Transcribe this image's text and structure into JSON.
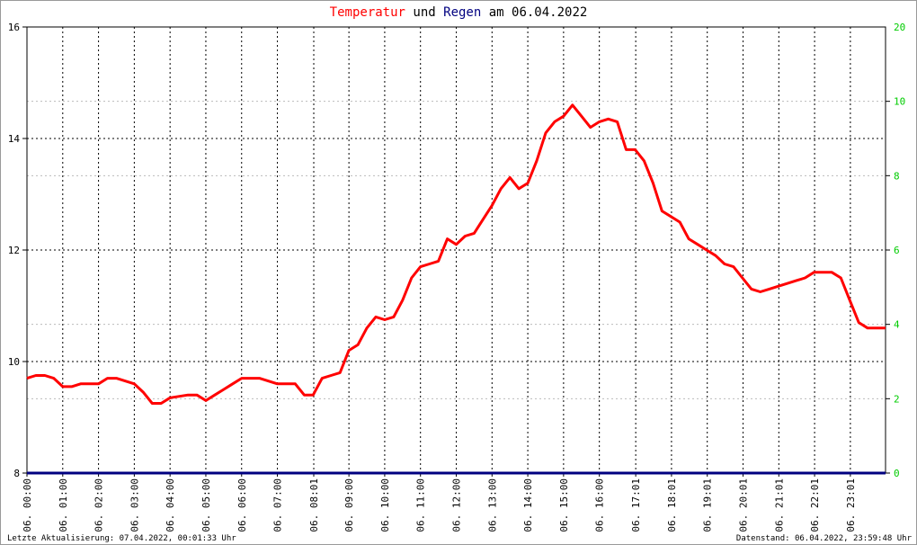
{
  "chart_data": {
    "type": "line",
    "title_join": "und",
    "title_suffix": "am 06.04.2022",
    "x": [
      0,
      0.25,
      0.5,
      0.75,
      1,
      1.25,
      1.5,
      2,
      2.25,
      2.5,
      3,
      3.25,
      3.5,
      3.75,
      4,
      4.5,
      4.75,
      5,
      5.25,
      5.5,
      5.75,
      6,
      6.5,
      7,
      7.5,
      7.75,
      8,
      8.25,
      8.5,
      8.75,
      9,
      9.25,
      9.5,
      9.75,
      10,
      10.25,
      10.5,
      10.75,
      11,
      11.25,
      11.5,
      11.75,
      12,
      12.25,
      12.5,
      12.75,
      13,
      13.25,
      13.5,
      13.75,
      14,
      14.25,
      14.5,
      14.75,
      15,
      15.25,
      15.5,
      15.75,
      16,
      16.25,
      16.5,
      16.75,
      17,
      17.25,
      17.5,
      17.75,
      18,
      18.25,
      18.5,
      18.75,
      19,
      19.25,
      19.5,
      19.75,
      20,
      20.25,
      20.5,
      20.75,
      21,
      21.25,
      21.5,
      21.75,
      22,
      22.25,
      22.5,
      22.75,
      23,
      23.25,
      23.5,
      23.75,
      24
    ],
    "series": [
      {
        "name": "Temperatur",
        "color": "#ff0000",
        "values": [
          9.7,
          9.75,
          9.75,
          9.7,
          9.55,
          9.55,
          9.6,
          9.6,
          9.7,
          9.7,
          9.6,
          9.45,
          9.25,
          9.25,
          9.35,
          9.4,
          9.4,
          9.3,
          9.4,
          9.5,
          9.6,
          9.7,
          9.7,
          9.6,
          9.6,
          9.4,
          9.4,
          9.7,
          9.75,
          9.8,
          10.2,
          10.3,
          10.6,
          10.8,
          10.75,
          10.8,
          11.1,
          11.5,
          11.7,
          11.75,
          11.8,
          12.2,
          12.1,
          12.25,
          12.3,
          12.55,
          12.8,
          13.1,
          13.3,
          13.1,
          13.2,
          13.6,
          14.1,
          14.3,
          14.4,
          14.6,
          14.4,
          14.2,
          14.3,
          14.35,
          14.3,
          13.8,
          13.8,
          13.6,
          13.2,
          12.7,
          12.6,
          12.5,
          12.2,
          12.1,
          12.0,
          11.9,
          11.75,
          11.7,
          11.5,
          11.3,
          11.25,
          11.3,
          11.35,
          11.4,
          11.45,
          11.5,
          11.6,
          11.6,
          11.6,
          11.5,
          11.1,
          10.7,
          10.6,
          10.6,
          10.6
        ]
      },
      {
        "name": "Regen",
        "color": "#000080",
        "axis": "y2",
        "x": [
          0,
          24
        ],
        "values": [
          0,
          0
        ]
      }
    ],
    "xlim": [
      0,
      24
    ],
    "xticks": [
      {
        "value": 0,
        "label": "06. 00:00"
      },
      {
        "value": 1,
        "label": "06. 01:00"
      },
      {
        "value": 2,
        "label": "06. 02:00"
      },
      {
        "value": 3,
        "label": "06. 03:00"
      },
      {
        "value": 4,
        "label": "06. 04:00"
      },
      {
        "value": 5,
        "label": "06. 05:00"
      },
      {
        "value": 6,
        "label": "06. 06:00"
      },
      {
        "value": 7,
        "label": "06. 07:00"
      },
      {
        "value": 8.017,
        "label": "06. 08:01"
      },
      {
        "value": 9,
        "label": "06. 09:00"
      },
      {
        "value": 10,
        "label": "06. 10:00"
      },
      {
        "value": 11,
        "label": "06. 11:00"
      },
      {
        "value": 12,
        "label": "06. 12:00"
      },
      {
        "value": 13,
        "label": "06. 13:00"
      },
      {
        "value": 14,
        "label": "06. 14:00"
      },
      {
        "value": 15,
        "label": "06. 15:00"
      },
      {
        "value": 16,
        "label": "06. 16:00"
      },
      {
        "value": 17.017,
        "label": "06. 17:01"
      },
      {
        "value": 18.017,
        "label": "06. 18:01"
      },
      {
        "value": 19.017,
        "label": "06. 19:01"
      },
      {
        "value": 20.017,
        "label": "06. 20:01"
      },
      {
        "value": 21.017,
        "label": "06. 21:01"
      },
      {
        "value": 22.017,
        "label": "06. 22:01"
      },
      {
        "value": 23.017,
        "label": "06. 23:01"
      }
    ],
    "ylim": [
      8,
      16
    ],
    "yticks": [
      8,
      10,
      12,
      14,
      16
    ],
    "y2lim": [
      0,
      12
    ],
    "y2ticks": [
      0,
      2,
      4,
      6,
      8,
      10
    ],
    "y2_top_label": "20",
    "y2_color": "#00cc00",
    "grid": true,
    "footer_left": "Letzte Aktualisierung: 07.04.2022, 00:01:33 Uhr",
    "footer_right": "Datenstand: 06.04.2022, 23:59:48 Uhr"
  }
}
